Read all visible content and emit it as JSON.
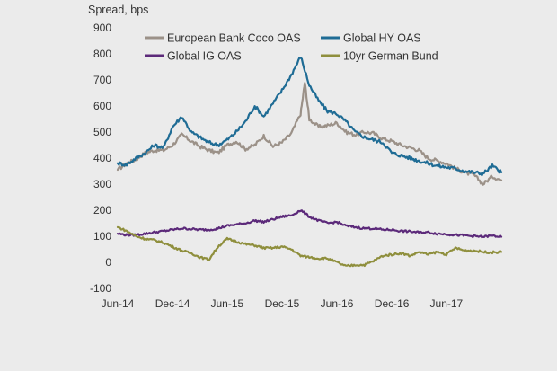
{
  "chart_data": {
    "type": "line",
    "ylabel": "Spread, bps",
    "ylim": [
      -100,
      900
    ],
    "yticks": [
      -100,
      0,
      100,
      200,
      300,
      400,
      500,
      600,
      700,
      800,
      900
    ],
    "y_tick_labels": [
      "-100",
      "0",
      "100",
      "200",
      "300",
      "400",
      "500",
      "600",
      "700",
      "800",
      "900"
    ],
    "x_tick_labels": [
      "Jun-14",
      "Dec-14",
      "Jun-15",
      "Dec-15",
      "Jun-16",
      "Dec-16",
      "Jun-17"
    ],
    "grid": false,
    "legend_position": "top",
    "series": [
      {
        "name": "European Bank Coco OAS",
        "color": "#9b9188",
        "points": [
          [
            "2014-06-01",
            355
          ],
          [
            "2014-07-01",
            380
          ],
          [
            "2014-08-01",
            395
          ],
          [
            "2014-09-01",
            420
          ],
          [
            "2014-10-01",
            430
          ],
          [
            "2014-11-01",
            430
          ],
          [
            "2014-12-01",
            450
          ],
          [
            "2015-01-01",
            490
          ],
          [
            "2015-02-01",
            465
          ],
          [
            "2015-03-01",
            445
          ],
          [
            "2015-04-01",
            430
          ],
          [
            "2015-05-01",
            420
          ],
          [
            "2015-06-01",
            450
          ],
          [
            "2015-07-01",
            465
          ],
          [
            "2015-08-01",
            435
          ],
          [
            "2015-09-01",
            450
          ],
          [
            "2015-10-01",
            485
          ],
          [
            "2015-11-01",
            445
          ],
          [
            "2015-12-01",
            460
          ],
          [
            "2016-01-01",
            495
          ],
          [
            "2016-02-01",
            570
          ],
          [
            "2016-02-15",
            690
          ],
          [
            "2016-03-01",
            550
          ],
          [
            "2016-04-01",
            520
          ],
          [
            "2016-05-01",
            525
          ],
          [
            "2016-06-01",
            535
          ],
          [
            "2016-07-01",
            500
          ],
          [
            "2016-08-01",
            490
          ],
          [
            "2016-09-01",
            500
          ],
          [
            "2016-10-01",
            495
          ],
          [
            "2016-11-01",
            475
          ],
          [
            "2016-12-01",
            465
          ],
          [
            "2017-01-01",
            450
          ],
          [
            "2017-02-01",
            440
          ],
          [
            "2017-03-01",
            430
          ],
          [
            "2017-04-01",
            400
          ],
          [
            "2017-05-01",
            390
          ],
          [
            "2017-06-01",
            380
          ],
          [
            "2017-07-01",
            360
          ],
          [
            "2017-08-01",
            345
          ],
          [
            "2017-09-01",
            335
          ],
          [
            "2017-10-01",
            300
          ],
          [
            "2017-11-01",
            330
          ],
          [
            "2017-12-01",
            315
          ]
        ]
      },
      {
        "name": "Global HY OAS",
        "color": "#1f6c95",
        "points": [
          [
            "2014-06-01",
            380
          ],
          [
            "2014-07-01",
            375
          ],
          [
            "2014-08-01",
            400
          ],
          [
            "2014-09-01",
            420
          ],
          [
            "2014-10-01",
            450
          ],
          [
            "2014-11-01",
            440
          ],
          [
            "2014-12-01",
            520
          ],
          [
            "2015-01-01",
            560
          ],
          [
            "2015-02-01",
            500
          ],
          [
            "2015-03-01",
            480
          ],
          [
            "2015-04-01",
            460
          ],
          [
            "2015-05-01",
            450
          ],
          [
            "2015-06-01",
            470
          ],
          [
            "2015-07-01",
            500
          ],
          [
            "2015-08-01",
            540
          ],
          [
            "2015-09-01",
            600
          ],
          [
            "2015-10-01",
            560
          ],
          [
            "2015-11-01",
            610
          ],
          [
            "2015-12-01",
            660
          ],
          [
            "2016-01-01",
            720
          ],
          [
            "2016-02-01",
            790
          ],
          [
            "2016-03-01",
            680
          ],
          [
            "2016-04-01",
            620
          ],
          [
            "2016-05-01",
            580
          ],
          [
            "2016-06-01",
            570
          ],
          [
            "2016-07-01",
            540
          ],
          [
            "2016-08-01",
            500
          ],
          [
            "2016-09-01",
            480
          ],
          [
            "2016-10-01",
            470
          ],
          [
            "2016-11-01",
            460
          ],
          [
            "2016-12-01",
            420
          ],
          [
            "2017-01-01",
            410
          ],
          [
            "2017-02-01",
            400
          ],
          [
            "2017-03-01",
            390
          ],
          [
            "2017-04-01",
            380
          ],
          [
            "2017-05-01",
            370
          ],
          [
            "2017-06-01",
            365
          ],
          [
            "2017-07-01",
            360
          ],
          [
            "2017-08-01",
            350
          ],
          [
            "2017-09-01",
            345
          ],
          [
            "2017-10-01",
            340
          ],
          [
            "2017-11-01",
            370
          ],
          [
            "2017-12-01",
            345
          ]
        ]
      },
      {
        "name": "Global IG OAS",
        "color": "#5c2a7a",
        "points": [
          [
            "2014-06-01",
            110
          ],
          [
            "2014-07-01",
            105
          ],
          [
            "2014-08-01",
            105
          ],
          [
            "2014-09-01",
            110
          ],
          [
            "2014-10-01",
            115
          ],
          [
            "2014-11-01",
            120
          ],
          [
            "2014-12-01",
            125
          ],
          [
            "2015-01-01",
            130
          ],
          [
            "2015-02-01",
            128
          ],
          [
            "2015-03-01",
            125
          ],
          [
            "2015-04-01",
            125
          ],
          [
            "2015-05-01",
            130
          ],
          [
            "2015-06-01",
            140
          ],
          [
            "2015-07-01",
            145
          ],
          [
            "2015-08-01",
            150
          ],
          [
            "2015-09-01",
            160
          ],
          [
            "2015-10-01",
            155
          ],
          [
            "2015-11-01",
            165
          ],
          [
            "2015-12-01",
            175
          ],
          [
            "2016-01-01",
            180
          ],
          [
            "2016-02-01",
            200
          ],
          [
            "2016-03-01",
            175
          ],
          [
            "2016-04-01",
            160
          ],
          [
            "2016-05-01",
            150
          ],
          [
            "2016-06-01",
            155
          ],
          [
            "2016-07-01",
            140
          ],
          [
            "2016-08-01",
            135
          ],
          [
            "2016-09-01",
            130
          ],
          [
            "2016-10-01",
            130
          ],
          [
            "2016-11-01",
            125
          ],
          [
            "2016-12-01",
            125
          ],
          [
            "2017-01-01",
            120
          ],
          [
            "2017-02-01",
            118
          ],
          [
            "2017-03-01",
            115
          ],
          [
            "2017-04-01",
            115
          ],
          [
            "2017-05-01",
            110
          ],
          [
            "2017-06-01",
            108
          ],
          [
            "2017-07-01",
            105
          ],
          [
            "2017-08-01",
            103
          ],
          [
            "2017-09-01",
            100
          ],
          [
            "2017-10-01",
            98
          ],
          [
            "2017-11-01",
            102
          ],
          [
            "2017-12-01",
            98
          ]
        ]
      },
      {
        "name": "10yr German Bund",
        "color": "#8f8f3d",
        "points": [
          [
            "2014-06-01",
            135
          ],
          [
            "2014-07-01",
            120
          ],
          [
            "2014-08-01",
            100
          ],
          [
            "2014-09-01",
            90
          ],
          [
            "2014-10-01",
            85
          ],
          [
            "2014-11-01",
            75
          ],
          [
            "2014-12-01",
            60
          ],
          [
            "2015-01-01",
            45
          ],
          [
            "2015-02-01",
            35
          ],
          [
            "2015-03-01",
            20
          ],
          [
            "2015-04-01",
            10
          ],
          [
            "2015-05-01",
            60
          ],
          [
            "2015-06-01",
            90
          ],
          [
            "2015-07-01",
            80
          ],
          [
            "2015-08-01",
            70
          ],
          [
            "2015-09-01",
            65
          ],
          [
            "2015-10-01",
            55
          ],
          [
            "2015-11-01",
            55
          ],
          [
            "2015-12-01",
            60
          ],
          [
            "2016-01-01",
            50
          ],
          [
            "2016-02-01",
            25
          ],
          [
            "2016-03-01",
            20
          ],
          [
            "2016-04-01",
            15
          ],
          [
            "2016-05-01",
            15
          ],
          [
            "2016-06-01",
            0
          ],
          [
            "2016-07-01",
            -15
          ],
          [
            "2016-08-01",
            -10
          ],
          [
            "2016-09-01",
            -10
          ],
          [
            "2016-10-01",
            5
          ],
          [
            "2016-11-01",
            25
          ],
          [
            "2016-12-01",
            30
          ],
          [
            "2017-01-01",
            35
          ],
          [
            "2017-02-01",
            25
          ],
          [
            "2017-03-01",
            40
          ],
          [
            "2017-04-01",
            30
          ],
          [
            "2017-05-01",
            40
          ],
          [
            "2017-06-01",
            30
          ],
          [
            "2017-07-01",
            55
          ],
          [
            "2017-08-01",
            45
          ],
          [
            "2017-09-01",
            45
          ],
          [
            "2017-10-01",
            40
          ],
          [
            "2017-11-01",
            38
          ],
          [
            "2017-12-01",
            40
          ]
        ]
      }
    ]
  }
}
